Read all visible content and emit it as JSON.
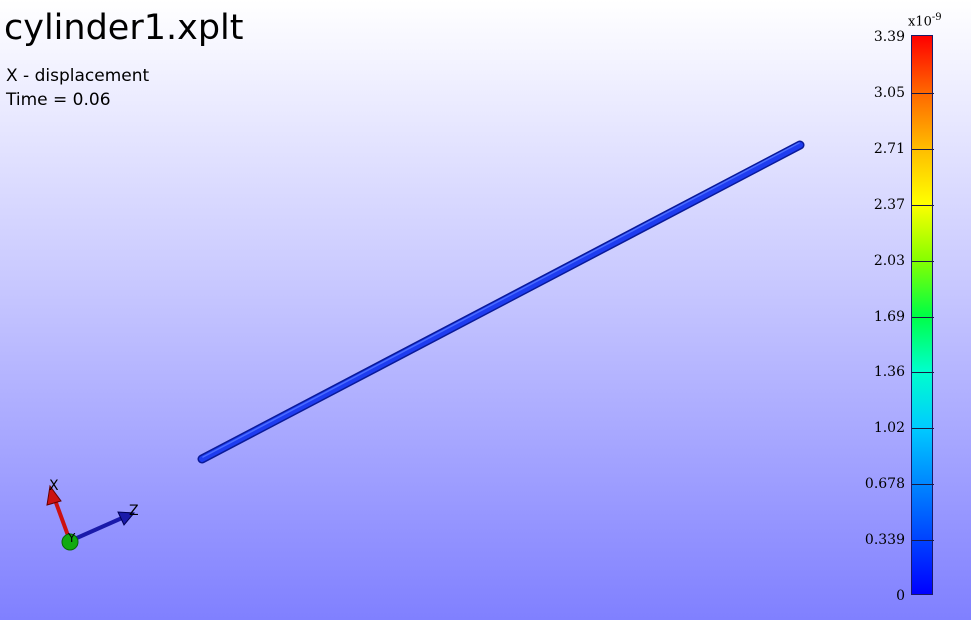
{
  "title": "cylinder1.xplt",
  "field_label": "X - displacement",
  "time_label": "Time = 0.06",
  "colorbar": {
    "multiplier_base": "x10",
    "multiplier_exponent": "-9",
    "ticks": [
      "3.39",
      "3.05",
      "2.71",
      "2.37",
      "2.03",
      "1.69",
      "1.36",
      "1.02",
      "0.678",
      "0.339",
      "0"
    ],
    "colors": [
      "#0000ff",
      "#0044ff",
      "#0088ff",
      "#00ccff",
      "#00ffcc",
      "#00ff44",
      "#88ff00",
      "#ffff00",
      "#ffbb00",
      "#ff6600",
      "#ff0000"
    ]
  },
  "triad": {
    "x_label": "X",
    "y_label": "Y",
    "z_label": "Z",
    "x_color": "#cc1111",
    "y_color": "#11aa11",
    "z_color": "#1a1aaa"
  },
  "model": {
    "color": "#1e3cf0"
  }
}
